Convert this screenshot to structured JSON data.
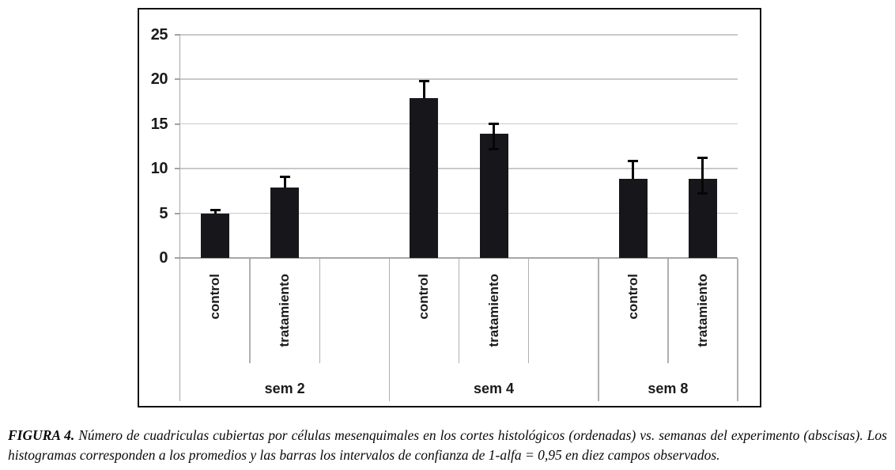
{
  "figure": {
    "caption_label": "FIGURA 4.",
    "caption_text": " Número de cuadriculas cubiertas por células mesenquimales en los cortes histológicos (ordenadas) vs. semanas del experimento (abscisas). Los histogramas corresponden a los promedios y las barras los intervalos de confianza de 1-alfa = 0,95 en diez campos observados."
  },
  "chart_data": {
    "type": "bar",
    "title": "",
    "xlabel": "",
    "ylabel": "",
    "ylim": [
      0,
      25
    ],
    "yticks": [
      0,
      5,
      10,
      15,
      20,
      25
    ],
    "grid": true,
    "legend_position": "none",
    "bar_color": "#17171b",
    "error_bar_color": "#060606",
    "axis_color": "#a6a6a6",
    "gridline_color": "#c9c9c9",
    "groups": [
      {
        "label": "sem 2",
        "trailing_gap": true,
        "bars": [
          {
            "label": "control",
            "value": 5.0,
            "ci_high": 5.4,
            "ci_low": null
          },
          {
            "label": "tratamiento",
            "value": 7.9,
            "ci_high": 9.1,
            "ci_low": null
          }
        ]
      },
      {
        "label": "sem 4",
        "trailing_gap": true,
        "bars": [
          {
            "label": "control",
            "value": 17.9,
            "ci_high": 19.8,
            "ci_low": null
          },
          {
            "label": "tratamiento",
            "value": 13.9,
            "ci_high": 15.0,
            "ci_low": 12.2
          }
        ]
      },
      {
        "label": "sem 8",
        "trailing_gap": false,
        "bars": [
          {
            "label": "control",
            "value": 8.9,
            "ci_high": 10.9,
            "ci_low": null
          },
          {
            "label": "tratamiento",
            "value": 8.9,
            "ci_high": 11.2,
            "ci_low": 7.2
          }
        ]
      }
    ]
  }
}
